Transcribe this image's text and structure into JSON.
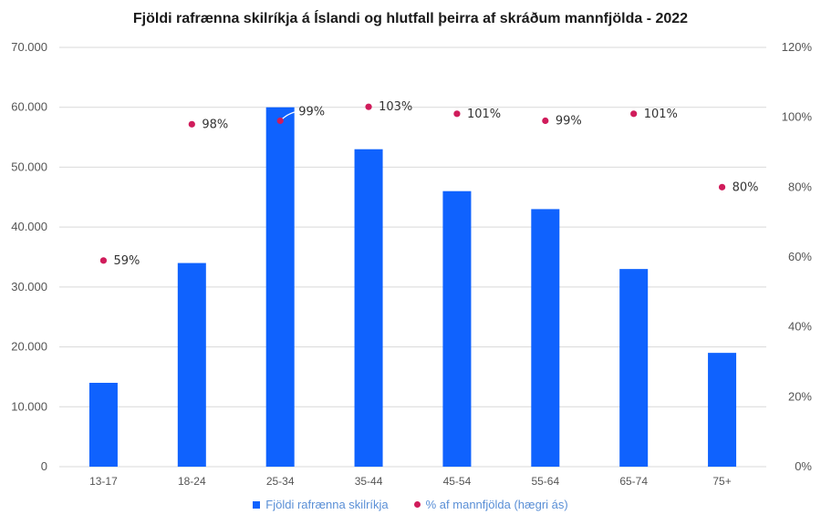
{
  "colors": {
    "bar": "#0F62FE",
    "dot": "#D01C5B",
    "grid": "#D9D9D9",
    "axis_text": "#555555"
  },
  "chart_data": {
    "type": "bar",
    "title": "Fjöldi rafrænna skilríkja á Íslandi og hlutfall þeirra af skráðum mannfjölda - 2022",
    "categories": [
      "13-17",
      "18-24",
      "25-34",
      "35-44",
      "45-54",
      "55-64",
      "65-74",
      "75+"
    ],
    "series": [
      {
        "name": "Fjöldi rafrænna skilríkja",
        "type": "bar",
        "axis": "left",
        "values": [
          14000,
          34000,
          60000,
          53000,
          46000,
          43000,
          33000,
          19000
        ]
      },
      {
        "name": "% af mannfjölda (hægri ás)",
        "type": "scatter",
        "axis": "right",
        "values": [
          59,
          98,
          99,
          103,
          101,
          99,
          101,
          80
        ],
        "labels": [
          "59%",
          "98%",
          "99%",
          "103%",
          "101%",
          "99%",
          "101%",
          "80%"
        ]
      }
    ],
    "ylim": [
      0,
      70000
    ],
    "yticks": [
      "0",
      "10.000",
      "20.000",
      "30.000",
      "40.000",
      "50.000",
      "60.000",
      "70.000"
    ],
    "y2lim": [
      0,
      120
    ],
    "y2ticks": [
      "0%",
      "20%",
      "40%",
      "60%",
      "80%",
      "100%",
      "120%"
    ],
    "grid": true,
    "legend": "bottom"
  }
}
